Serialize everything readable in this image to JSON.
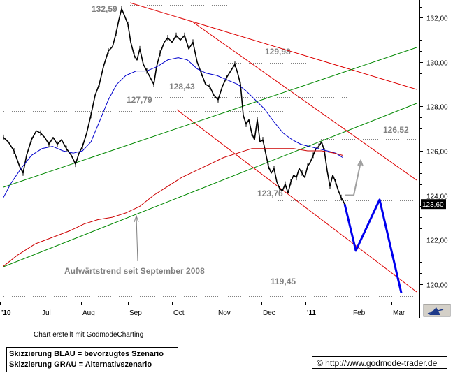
{
  "chart_data": {
    "type": "line",
    "title": "",
    "y_axis": {
      "ticks": [
        "132,00",
        "130,00",
        "128,00",
        "126,00",
        "124,00",
        "122,00",
        "120,00"
      ],
      "tick_values": [
        132,
        130,
        128,
        126,
        124,
        122,
        120
      ],
      "ylim": [
        119.2,
        132.8
      ],
      "last_price_label": "123,60",
      "last_price": 123.6
    },
    "x_axis": {
      "labels": [
        "'10",
        "Jul",
        "Aug",
        "Sep",
        "Oct",
        "Nov",
        "Dec",
        "'11",
        "Feb",
        "Mar"
      ]
    },
    "levels": [
      {
        "label": "132,59",
        "value": 132.59
      },
      {
        "label": "129,98",
        "value": 129.98
      },
      {
        "label": "128,43",
        "value": 128.43
      },
      {
        "label": "127,79",
        "value": 127.79
      },
      {
        "label": "126,52",
        "value": 126.52
      },
      {
        "label": "123,76",
        "value": 123.76
      },
      {
        "label": "119,45",
        "value": 119.45
      }
    ],
    "annotations": [
      "Aufwärtstrend seit September 2008"
    ],
    "series": [
      {
        "name": "",
        "color": "#000000",
        "kind": "price",
        "points": [
          [
            5,
            126.6
          ],
          [
            12,
            126.4
          ],
          [
            20,
            126.0
          ],
          [
            28,
            125.3
          ],
          [
            33,
            125.0
          ],
          [
            38,
            125.8
          ],
          [
            45,
            126.5
          ],
          [
            52,
            126.9
          ],
          [
            58,
            126.8
          ],
          [
            64,
            126.6
          ],
          [
            70,
            126.3
          ],
          [
            76,
            126.6
          ],
          [
            82,
            126.3
          ],
          [
            88,
            126.5
          ],
          [
            95,
            126.1
          ],
          [
            102,
            125.8
          ],
          [
            108,
            125.4
          ],
          [
            113,
            125.9
          ],
          [
            118,
            126.2
          ],
          [
            124,
            126.8
          ],
          [
            130,
            127.6
          ],
          [
            136,
            128.5
          ],
          [
            142,
            129.0
          ],
          [
            148,
            129.8
          ],
          [
            155,
            130.5
          ],
          [
            161,
            130.7
          ],
          [
            166,
            131.3
          ],
          [
            170,
            131.9
          ],
          [
            174,
            132.4
          ],
          [
            178,
            132.1
          ],
          [
            183,
            131.7
          ],
          [
            187,
            130.9
          ],
          [
            192,
            130.3
          ],
          [
            196,
            130.1
          ],
          [
            200,
            130.6
          ],
          [
            205,
            129.9
          ],
          [
            210,
            129.6
          ],
          [
            215,
            129.3
          ],
          [
            220,
            129.0
          ],
          [
            224,
            129.8
          ],
          [
            229,
            130.4
          ],
          [
            235,
            130.9
          ],
          [
            240,
            131.1
          ],
          [
            246,
            130.9
          ],
          [
            252,
            131.2
          ],
          [
            258,
            131.0
          ],
          [
            264,
            131.2
          ],
          [
            270,
            130.6
          ],
          [
            276,
            130.9
          ],
          [
            282,
            130.0
          ],
          [
            288,
            129.5
          ],
          [
            294,
            129.0
          ],
          [
            300,
            128.9
          ],
          [
            306,
            128.5
          ],
          [
            312,
            128.3
          ],
          [
            318,
            128.9
          ],
          [
            324,
            129.3
          ],
          [
            330,
            129.6
          ],
          [
            336,
            129.9
          ],
          [
            340,
            129.5
          ],
          [
            344,
            129.0
          ],
          [
            348,
            127.6
          ],
          [
            352,
            127.2
          ],
          [
            356,
            127.4
          ],
          [
            360,
            126.8
          ],
          [
            364,
            126.5
          ],
          [
            368,
            127.4
          ],
          [
            372,
            126.4
          ],
          [
            376,
            126.5
          ],
          [
            380,
            125.9
          ],
          [
            384,
            125.3
          ],
          [
            388,
            125.0
          ],
          [
            392,
            125.2
          ],
          [
            396,
            124.6
          ],
          [
            400,
            124.3
          ],
          [
            404,
            124.2
          ],
          [
            408,
            124.5
          ],
          [
            412,
            124.1
          ],
          [
            416,
            124.6
          ],
          [
            420,
            124.9
          ],
          [
            424,
            124.8
          ],
          [
            428,
            125.2
          ],
          [
            432,
            125.0
          ],
          [
            436,
            124.8
          ],
          [
            440,
            125.3
          ],
          [
            444,
            125.5
          ],
          [
            448,
            125.8
          ],
          [
            452,
            126.1
          ],
          [
            456,
            126.2
          ],
          [
            460,
            126.4
          ],
          [
            464,
            126.0
          ],
          [
            468,
            125.1
          ],
          [
            472,
            124.4
          ],
          [
            476,
            124.9
          ],
          [
            480,
            124.6
          ],
          [
            484,
            124.2
          ],
          [
            488,
            123.9
          ],
          [
            493,
            123.6
          ]
        ]
      },
      {
        "name": "",
        "color": "#0000cc",
        "kind": "moving-average",
        "points": [
          [
            5,
            123.9
          ],
          [
            15,
            124.5
          ],
          [
            30,
            125.2
          ],
          [
            45,
            125.8
          ],
          [
            60,
            126.1
          ],
          [
            75,
            126.2
          ],
          [
            90,
            126.0
          ],
          [
            105,
            125.9
          ],
          [
            118,
            126.0
          ],
          [
            130,
            126.4
          ],
          [
            142,
            127.3
          ],
          [
            155,
            128.3
          ],
          [
            167,
            129.0
          ],
          [
            180,
            129.4
          ],
          [
            195,
            129.6
          ],
          [
            210,
            129.6
          ],
          [
            225,
            129.8
          ],
          [
            240,
            130.1
          ],
          [
            255,
            130.2
          ],
          [
            268,
            130.1
          ],
          [
            282,
            129.7
          ],
          [
            295,
            129.5
          ],
          [
            310,
            129.4
          ],
          [
            325,
            129.2
          ],
          [
            340,
            129.0
          ],
          [
            352,
            128.7
          ],
          [
            365,
            128.3
          ],
          [
            378,
            127.9
          ],
          [
            392,
            127.3
          ],
          [
            405,
            126.8
          ],
          [
            418,
            126.5
          ],
          [
            430,
            126.3
          ],
          [
            442,
            126.2
          ],
          [
            455,
            126.1
          ],
          [
            468,
            126.0
          ],
          [
            480,
            125.9
          ],
          [
            490,
            125.7
          ]
        ]
      },
      {
        "name": "",
        "color": "#cc0000",
        "kind": "moving-average",
        "points": [
          [
            5,
            120.8
          ],
          [
            25,
            121.3
          ],
          [
            50,
            121.8
          ],
          [
            75,
            122.1
          ],
          [
            100,
            122.4
          ],
          [
            120,
            122.7
          ],
          [
            140,
            122.9
          ],
          [
            160,
            123.0
          ],
          [
            180,
            123.2
          ],
          [
            200,
            123.5
          ],
          [
            220,
            124.0
          ],
          [
            240,
            124.4
          ],
          [
            260,
            124.8
          ],
          [
            280,
            125.1
          ],
          [
            300,
            125.4
          ],
          [
            320,
            125.7
          ],
          [
            340,
            125.9
          ],
          [
            360,
            126.1
          ],
          [
            380,
            126.1
          ],
          [
            400,
            126.1
          ],
          [
            420,
            126.1
          ],
          [
            440,
            126.0
          ],
          [
            460,
            126.0
          ],
          [
            478,
            125.9
          ],
          [
            490,
            125.8
          ]
        ]
      },
      {
        "name": "",
        "color": "#0000ee",
        "kind": "scenario",
        "points": [
          [
            493,
            123.6
          ],
          [
            509,
            121.5
          ],
          [
            543,
            123.8
          ],
          [
            574,
            119.6
          ]
        ]
      },
      {
        "name": "",
        "color": "#a0a0a0",
        "kind": "scenario",
        "points": [
          [
            493,
            124.0
          ],
          [
            506,
            124.0
          ],
          [
            516,
            125.5
          ]
        ]
      }
    ]
  },
  "footer": {
    "credit": "Chart erstellt mit GodmodeCharting",
    "legend_line1": "Skizzierung BLAU = bevorzugtes Szenario",
    "legend_line2": "Skizzierung GRAU = Alternativszenario",
    "url": "© http://www.godmode-trader.de"
  }
}
